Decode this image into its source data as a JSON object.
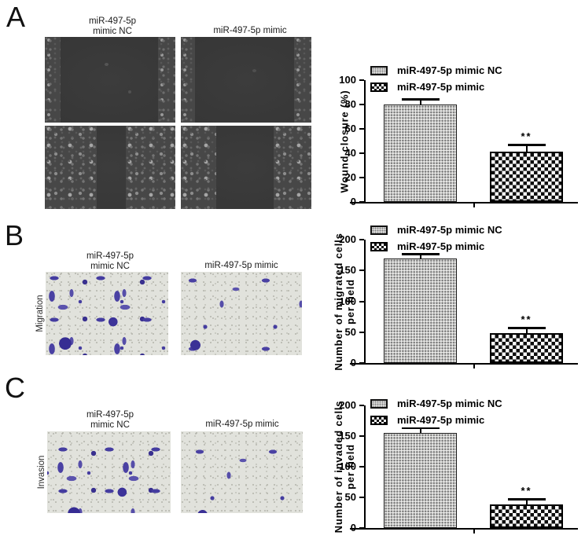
{
  "figure": {
    "panels": [
      {
        "label": "A",
        "column_titles": [
          "miR-497-5p\nmimic NC",
          "miR-497-5p mimic"
        ],
        "row_label": ""
      },
      {
        "label": "B",
        "column_titles": [
          "miR-497-5p\nmimic NC",
          "miR-497-5p mimic"
        ],
        "row_label": "Migration"
      },
      {
        "label": "C",
        "column_titles": [
          "miR-497-5p\nmimic NC",
          "miR-497-5p mimic"
        ],
        "row_label": "Invasion"
      }
    ]
  },
  "chart_data": [
    {
      "type": "bar",
      "categories": [
        "miR-497-5p mimic NC",
        "miR-497-5p mimic"
      ],
      "values": [
        80,
        41
      ],
      "errors": [
        4.5,
        6
      ],
      "significance": [
        "",
        "**"
      ],
      "legend": [
        "miR-497-5p mimic NC",
        "miR-497-5p mimic"
      ],
      "title": "",
      "xlabel": "",
      "ylabel": "Wound closure (%)",
      "ylim": [
        0,
        100
      ],
      "ystep": 20,
      "grid": false,
      "legend_position": "top-left",
      "patterns": [
        "fine-check",
        "coarse-check"
      ]
    },
    {
      "type": "bar",
      "categories": [
        "miR-497-5p mimic NC",
        "miR-497-5p mimic"
      ],
      "values": [
        170,
        49
      ],
      "errors": [
        7,
        8
      ],
      "significance": [
        "",
        "**"
      ],
      "legend": [
        "miR-497-5p mimic NC",
        "miR-497-5p mimic"
      ],
      "title": "",
      "xlabel": "",
      "ylabel": "Number of migrated cells\nper field",
      "ylim": [
        0,
        200
      ],
      "ystep": 50,
      "grid": false,
      "legend_position": "top-left",
      "patterns": [
        "fine-check",
        "coarse-check"
      ]
    },
    {
      "type": "bar",
      "categories": [
        "miR-497-5p mimic NC",
        "miR-497-5p mimic"
      ],
      "values": [
        155,
        38
      ],
      "errors": [
        8,
        9
      ],
      "significance": [
        "",
        "**"
      ],
      "legend": [
        "miR-497-5p mimic NC",
        "miR-497-5p mimic"
      ],
      "title": "",
      "xlabel": "",
      "ylabel": "Number of invaded cells\nper field",
      "ylim": [
        0,
        200
      ],
      "ystep": 50,
      "grid": false,
      "legend_position": "top-left",
      "patterns": [
        "fine-check",
        "coarse-check"
      ]
    }
  ]
}
